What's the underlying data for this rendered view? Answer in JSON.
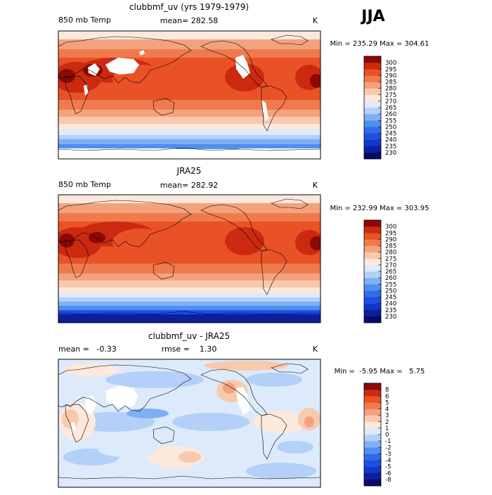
{
  "season": "JJA",
  "panels": [
    {
      "title": "clubbmf_uv (yrs 1979-1979)",
      "left_label": "850 mb Temp",
      "center_label": "mean= 282.58",
      "right_label": "K",
      "minmax": "Min = 235.29 Max = 304.61"
    },
    {
      "title": "JRA25",
      "left_label": "850 mb Temp",
      "center_label": "mean= 282.92",
      "right_label": "K",
      "minmax": "Min = 232.99 Max = 303.95"
    },
    {
      "title": "clubbmf_uv - JRA25",
      "left_label": "mean =   -0.33",
      "center_label": "rmse =    1.30",
      "right_label": "K",
      "minmax": "Min =  -5.95 Max =   5.75"
    }
  ],
  "chart_data": [
    {
      "type": "heatmap",
      "title": "clubbmf_uv (yrs 1979-1979)",
      "variable": "850 mb Temp",
      "units": "K",
      "mean": 282.58,
      "min": 235.29,
      "max": 304.61,
      "colorbar": {
        "levels": [
          230,
          235,
          240,
          245,
          250,
          255,
          260,
          265,
          270,
          275,
          280,
          285,
          290,
          295,
          300
        ],
        "colors": [
          "#08086b",
          "#0b1f9f",
          "#1237c8",
          "#1f4fe0",
          "#2f6ce8",
          "#4f8ff0",
          "#7faff5",
          "#b4d0f8",
          "#dceafb",
          "#fce8dc",
          "#f9c9ad",
          "#f4a27e",
          "#ef7b4d",
          "#e95226",
          "#cc2a10",
          "#8c0a05"
        ]
      },
      "grid": false
    },
    {
      "type": "heatmap",
      "title": "JRA25",
      "variable": "850 mb Temp",
      "units": "K",
      "mean": 282.92,
      "min": 232.99,
      "max": 303.95,
      "colorbar": {
        "levels": [
          230,
          235,
          240,
          245,
          250,
          255,
          260,
          265,
          270,
          275,
          280,
          285,
          290,
          295,
          300
        ],
        "colors": [
          "#08086b",
          "#0b1f9f",
          "#1237c8",
          "#1f4fe0",
          "#2f6ce8",
          "#4f8ff0",
          "#7faff5",
          "#b4d0f8",
          "#dceafb",
          "#fce8dc",
          "#f9c9ad",
          "#f4a27e",
          "#ef7b4d",
          "#e95226",
          "#cc2a10",
          "#8c0a05"
        ]
      },
      "grid": false
    },
    {
      "type": "heatmap",
      "title": "clubbmf_uv - JRA25",
      "units": "K",
      "mean": -0.33,
      "rmse": 1.3,
      "min": -5.95,
      "max": 5.75,
      "colorbar": {
        "levels": [
          "-8",
          "-6",
          "-5",
          "-4",
          "-3",
          "-2",
          "-1",
          "0",
          "1",
          "2",
          "3",
          "4",
          "5",
          "6",
          "8"
        ],
        "colors": [
          "#08086b",
          "#0b1f9f",
          "#1237c8",
          "#1f4fe0",
          "#2f6ce8",
          "#4f8ff0",
          "#7faff5",
          "#b4d0f8",
          "#dceafb",
          "#fce8dc",
          "#f9c9ad",
          "#f4a27e",
          "#ef7b4d",
          "#e95226",
          "#cc2a10",
          "#8c0a05"
        ]
      },
      "grid": false
    }
  ]
}
